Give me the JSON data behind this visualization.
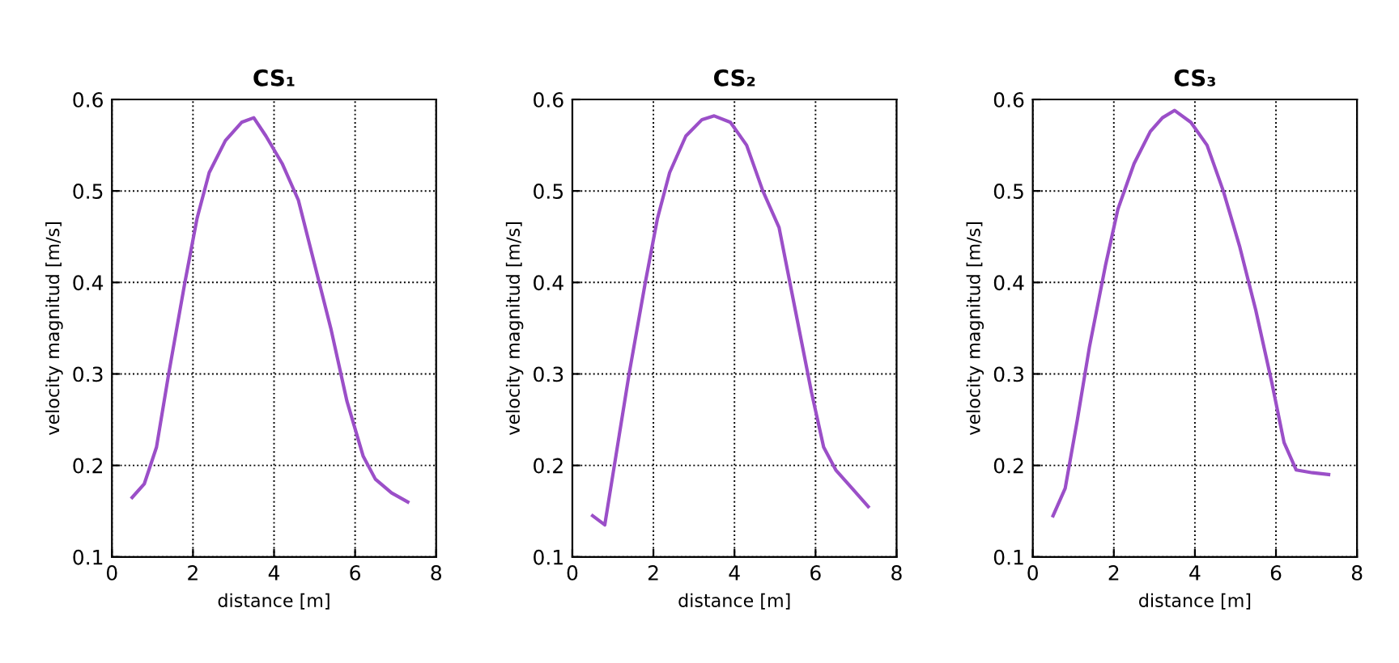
{
  "chart_data": [
    {
      "type": "line",
      "title": "CS₁",
      "xlabel": "distance [m]",
      "ylabel": "velocity magnitud [m/s]",
      "xlim": [
        0,
        8
      ],
      "ylim": [
        0.1,
        0.6
      ],
      "xticks": [
        0,
        2,
        4,
        6,
        8
      ],
      "yticks": [
        0.1,
        0.2,
        0.3,
        0.4,
        0.5,
        0.6
      ],
      "grid": true,
      "series": [
        {
          "color": "#9b4fc8",
          "x": [
            0.5,
            0.8,
            1.1,
            1.4,
            1.8,
            2.1,
            2.4,
            2.8,
            3.2,
            3.5,
            3.8,
            4.2,
            4.6,
            5.0,
            5.4,
            5.8,
            6.2,
            6.5,
            6.9,
            7.3
          ],
          "values": [
            0.165,
            0.18,
            0.22,
            0.3,
            0.4,
            0.47,
            0.52,
            0.555,
            0.575,
            0.58,
            0.56,
            0.53,
            0.49,
            0.42,
            0.35,
            0.27,
            0.21,
            0.185,
            0.17,
            0.16
          ]
        }
      ]
    },
    {
      "type": "line",
      "title": "CS₂",
      "xlabel": "distance [m]",
      "ylabel": "velocity magnitud [m/s]",
      "xlim": [
        0,
        8
      ],
      "ylim": [
        0.1,
        0.6
      ],
      "xticks": [
        0,
        2,
        4,
        6,
        8
      ],
      "yticks": [
        0.1,
        0.2,
        0.3,
        0.4,
        0.5,
        0.6
      ],
      "grid": true,
      "series": [
        {
          "color": "#9b4fc8",
          "x": [
            0.5,
            0.8,
            1.0,
            1.4,
            1.8,
            2.1,
            2.4,
            2.8,
            3.2,
            3.5,
            3.9,
            4.3,
            4.7,
            5.1,
            5.5,
            5.9,
            6.2,
            6.5,
            6.9,
            7.3
          ],
          "values": [
            0.145,
            0.135,
            0.19,
            0.3,
            0.4,
            0.47,
            0.52,
            0.56,
            0.578,
            0.582,
            0.575,
            0.55,
            0.5,
            0.46,
            0.37,
            0.28,
            0.22,
            0.195,
            0.175,
            0.155
          ]
        }
      ]
    },
    {
      "type": "line",
      "title": "CS₃",
      "xlabel": "distance [m]",
      "ylabel": "velocity magnitud [m/s]",
      "xlim": [
        0,
        8
      ],
      "ylim": [
        0.1,
        0.6
      ],
      "xticks": [
        0,
        2,
        4,
        6,
        8
      ],
      "yticks": [
        0.1,
        0.2,
        0.3,
        0.4,
        0.5,
        0.6
      ],
      "grid": true,
      "series": [
        {
          "color": "#9b4fc8",
          "x": [
            0.5,
            0.8,
            1.1,
            1.4,
            1.8,
            2.1,
            2.5,
            2.9,
            3.2,
            3.5,
            3.9,
            4.3,
            4.7,
            5.1,
            5.5,
            5.9,
            6.2,
            6.5,
            6.9,
            7.3
          ],
          "values": [
            0.145,
            0.175,
            0.25,
            0.33,
            0.42,
            0.48,
            0.53,
            0.565,
            0.58,
            0.588,
            0.575,
            0.55,
            0.5,
            0.44,
            0.37,
            0.29,
            0.225,
            0.195,
            0.192,
            0.19
          ]
        }
      ]
    }
  ]
}
